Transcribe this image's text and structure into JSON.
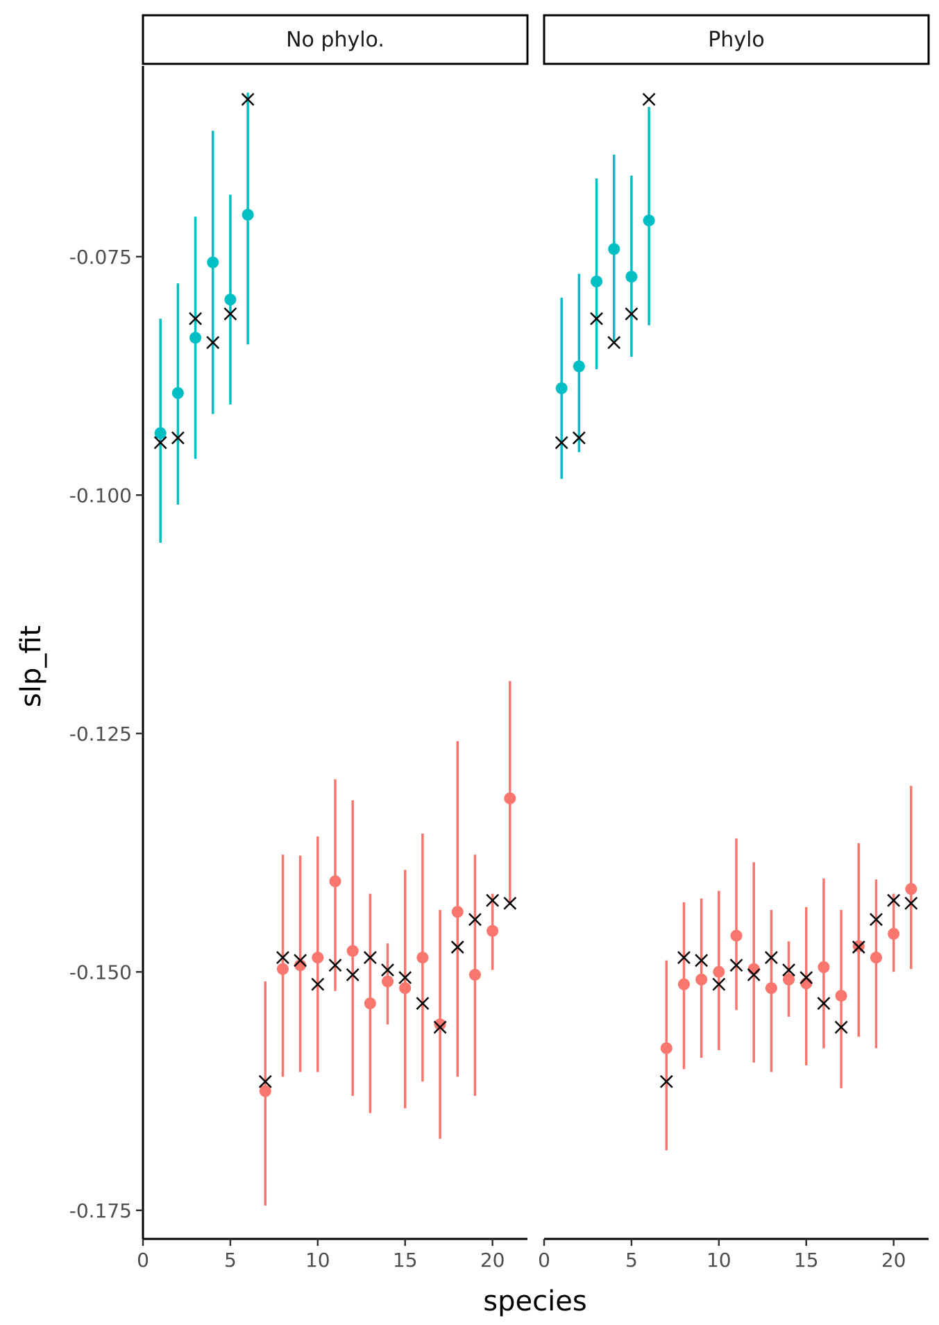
{
  "chart_data": {
    "type": "scatter",
    "xlabel": "species",
    "ylabel": "slp_fit",
    "xlim": [
      0,
      22
    ],
    "ylim": [
      -0.178,
      -0.055
    ],
    "x_ticks": [
      0,
      5,
      10,
      15,
      20
    ],
    "y_ticks": [
      -0.075,
      -0.1,
      -0.125,
      -0.15,
      -0.175
    ],
    "x_tick_labels": [
      "0",
      "5",
      "10",
      "15",
      "20"
    ],
    "y_tick_labels": [
      "-0.075",
      "-0.100",
      "-0.125",
      "-0.150",
      "-0.175"
    ],
    "grid": false,
    "legend": "none",
    "group_colors": {
      "group1": "#00bfc4",
      "group2": "#f8766d"
    },
    "truth_marker_color": "#000000",
    "truth": [
      {
        "x": 1,
        "y": -0.0945
      },
      {
        "x": 2,
        "y": -0.094
      },
      {
        "x": 3,
        "y": -0.0815
      },
      {
        "x": 4,
        "y": -0.084
      },
      {
        "x": 5,
        "y": -0.081
      },
      {
        "x": 6,
        "y": -0.0585
      },
      {
        "x": 7,
        "y": -0.1615
      },
      {
        "x": 8,
        "y": -0.1485
      },
      {
        "x": 9,
        "y": -0.1488
      },
      {
        "x": 10,
        "y": -0.1513
      },
      {
        "x": 11,
        "y": -0.1493
      },
      {
        "x": 12,
        "y": -0.1503
      },
      {
        "x": 13,
        "y": -0.1485
      },
      {
        "x": 14,
        "y": -0.1498
      },
      {
        "x": 15,
        "y": -0.1506
      },
      {
        "x": 16,
        "y": -0.1533
      },
      {
        "x": 17,
        "y": -0.1558
      },
      {
        "x": 18,
        "y": -0.1474
      },
      {
        "x": 19,
        "y": -0.1445
      },
      {
        "x": 20,
        "y": -0.1425
      },
      {
        "x": 21,
        "y": -0.1428
      }
    ],
    "panels": [
      {
        "label": "No phylo.",
        "estimates": [
          {
            "x": 1,
            "y": -0.0935,
            "lo": -0.105,
            "hi": -0.0815,
            "group": "group1"
          },
          {
            "x": 2,
            "y": -0.0893,
            "lo": -0.101,
            "hi": -0.0778,
            "group": "group1"
          },
          {
            "x": 3,
            "y": -0.0835,
            "lo": -0.0962,
            "hi": -0.0708,
            "group": "group1"
          },
          {
            "x": 4,
            "y": -0.0756,
            "lo": -0.0915,
            "hi": -0.0618,
            "group": "group1"
          },
          {
            "x": 5,
            "y": -0.0795,
            "lo": -0.0905,
            "hi": -0.0685,
            "group": "group1"
          },
          {
            "x": 6,
            "y": -0.0706,
            "lo": -0.0842,
            "hi": -0.0578,
            "group": "group1"
          },
          {
            "x": 7,
            "y": -0.1625,
            "lo": -0.1745,
            "hi": -0.151,
            "group": "group2"
          },
          {
            "x": 8,
            "y": -0.1497,
            "lo": -0.161,
            "hi": -0.1377,
            "group": "group2"
          },
          {
            "x": 9,
            "y": -0.1493,
            "lo": -0.1605,
            "hi": -0.1378,
            "group": "group2"
          },
          {
            "x": 10,
            "y": -0.1485,
            "lo": -0.1605,
            "hi": -0.1358,
            "group": "group2"
          },
          {
            "x": 11,
            "y": -0.1405,
            "lo": -0.152,
            "hi": -0.1298,
            "group": "group2"
          },
          {
            "x": 12,
            "y": -0.1478,
            "lo": -0.163,
            "hi": -0.132,
            "group": "group2"
          },
          {
            "x": 13,
            "y": -0.1533,
            "lo": -0.1648,
            "hi": -0.1418,
            "group": "group2"
          },
          {
            "x": 14,
            "y": -0.151,
            "lo": -0.1555,
            "hi": -0.147,
            "group": "group2"
          },
          {
            "x": 15,
            "y": -0.1517,
            "lo": -0.1643,
            "hi": -0.1393,
            "group": "group2"
          },
          {
            "x": 16,
            "y": -0.1485,
            "lo": -0.1615,
            "hi": -0.1355,
            "group": "group2"
          },
          {
            "x": 17,
            "y": -0.1555,
            "lo": -0.1675,
            "hi": -0.1435,
            "group": "group2"
          },
          {
            "x": 18,
            "y": -0.1437,
            "lo": -0.161,
            "hi": -0.1258,
            "group": "group2"
          },
          {
            "x": 19,
            "y": -0.1503,
            "lo": -0.163,
            "hi": -0.1377,
            "group": "group2"
          },
          {
            "x": 20,
            "y": -0.1457,
            "lo": -0.1498,
            "hi": -0.1418,
            "group": "group2"
          },
          {
            "x": 21,
            "y": -0.1318,
            "lo": -0.143,
            "hi": -0.1195,
            "group": "group2"
          }
        ]
      },
      {
        "label": "Phylo",
        "estimates": [
          {
            "x": 1,
            "y": -0.0888,
            "lo": -0.0983,
            "hi": -0.0793,
            "group": "group1"
          },
          {
            "x": 2,
            "y": -0.0865,
            "lo": -0.0955,
            "hi": -0.0768,
            "group": "group1"
          },
          {
            "x": 3,
            "y": -0.0776,
            "lo": -0.0868,
            "hi": -0.0668,
            "group": "group1"
          },
          {
            "x": 4,
            "y": -0.0742,
            "lo": -0.0838,
            "hi": -0.0643,
            "group": "group1"
          },
          {
            "x": 5,
            "y": -0.0771,
            "lo": -0.0855,
            "hi": -0.0665,
            "group": "group1"
          },
          {
            "x": 6,
            "y": -0.0712,
            "lo": -0.0822,
            "hi": -0.0593,
            "group": "group1"
          },
          {
            "x": 7,
            "y": -0.158,
            "lo": -0.1687,
            "hi": -0.1488,
            "group": "group2"
          },
          {
            "x": 8,
            "y": -0.1513,
            "lo": -0.1602,
            "hi": -0.1427,
            "group": "group2"
          },
          {
            "x": 9,
            "y": -0.1508,
            "lo": -0.159,
            "hi": -0.1423,
            "group": "group2"
          },
          {
            "x": 10,
            "y": -0.15,
            "lo": -0.1582,
            "hi": -0.1415,
            "group": "group2"
          },
          {
            "x": 11,
            "y": -0.1462,
            "lo": -0.154,
            "hi": -0.136,
            "group": "group2"
          },
          {
            "x": 12,
            "y": -0.1497,
            "lo": -0.1595,
            "hi": -0.1385,
            "group": "group2"
          },
          {
            "x": 13,
            "y": -0.1517,
            "lo": -0.1605,
            "hi": -0.1435,
            "group": "group2"
          },
          {
            "x": 14,
            "y": -0.1508,
            "lo": -0.1547,
            "hi": -0.1468,
            "group": "group2"
          },
          {
            "x": 15,
            "y": -0.1512,
            "lo": -0.1598,
            "hi": -0.1432,
            "group": "group2"
          },
          {
            "x": 16,
            "y": -0.1495,
            "lo": -0.158,
            "hi": -0.1402,
            "group": "group2"
          },
          {
            "x": 17,
            "y": -0.1525,
            "lo": -0.1622,
            "hi": -0.1435,
            "group": "group2"
          },
          {
            "x": 18,
            "y": -0.1473,
            "lo": -0.1568,
            "hi": -0.1365,
            "group": "group2"
          },
          {
            "x": 19,
            "y": -0.1485,
            "lo": -0.158,
            "hi": -0.1403,
            "group": "group2"
          },
          {
            "x": 20,
            "y": -0.146,
            "lo": -0.15,
            "hi": -0.1418,
            "group": "group2"
          },
          {
            "x": 21,
            "y": -0.1413,
            "lo": -0.1497,
            "hi": -0.1305,
            "group": "group2"
          }
        ]
      }
    ]
  }
}
